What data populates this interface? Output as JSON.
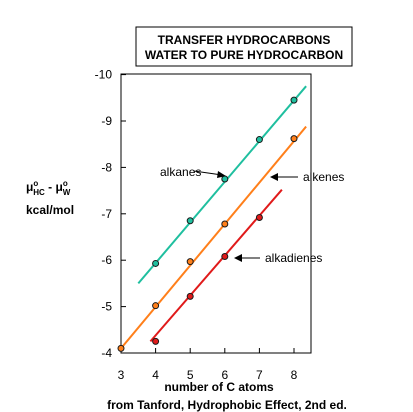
{
  "chart_data": {
    "type": "scatter",
    "title_lines": [
      "TRANSFER HYDROCARBONS",
      "WATER TO PURE HYDROCARBON"
    ],
    "xlabel": "number of C atoms",
    "ylabel_line1": {
      "mu": "μ",
      "sup": "o",
      "sub_hc": "HC",
      "minus": " - ",
      "sub_w": "W"
    },
    "ylabel_line2": "kcal/mol",
    "source_note": "from Tanford, Hydrophobic Effect, 2nd ed.",
    "xlim": [
      3,
      8.3
    ],
    "ylim": [
      -4,
      -10
    ],
    "x_ticks": [
      3,
      4,
      5,
      6,
      7,
      8
    ],
    "y_ticks": [
      -4,
      -5,
      -6,
      -7,
      -8,
      -9,
      -10
    ],
    "series": [
      {
        "name": "alkanes",
        "color": "#1fbf9f",
        "points": [
          {
            "x": 4,
            "y": -5.93
          },
          {
            "x": 5,
            "y": -6.85
          },
          {
            "x": 6,
            "y": -7.75
          },
          {
            "x": 7,
            "y": -8.6
          },
          {
            "x": 8,
            "y": -9.45
          }
        ],
        "fit_line": {
          "x": [
            3.5,
            8.35
          ],
          "y": [
            -5.5,
            -9.75
          ]
        }
      },
      {
        "name": "alkenes",
        "color": "#ff7f1a",
        "points": [
          {
            "x": 3,
            "y": -4.1
          },
          {
            "x": 4,
            "y": -5.02
          },
          {
            "x": 5,
            "y": -5.97
          },
          {
            "x": 6,
            "y": -6.78
          },
          {
            "x": 8,
            "y": -8.62
          }
        ],
        "fit_line": {
          "x": [
            3,
            8.35
          ],
          "y": [
            -4.1,
            -8.88
          ]
        }
      },
      {
        "name": "alkadienes",
        "color": "#e01a1a",
        "points": [
          {
            "x": 4,
            "y": -4.25
          },
          {
            "x": 5,
            "y": -5.22
          },
          {
            "x": 6,
            "y": -6.08
          },
          {
            "x": 7,
            "y": -6.92
          }
        ],
        "fit_line": {
          "x": [
            3.85,
            7.65
          ],
          "y": [
            -4.25,
            -7.52
          ]
        }
      }
    ],
    "grid": false,
    "legend": "inline labels with arrows"
  }
}
